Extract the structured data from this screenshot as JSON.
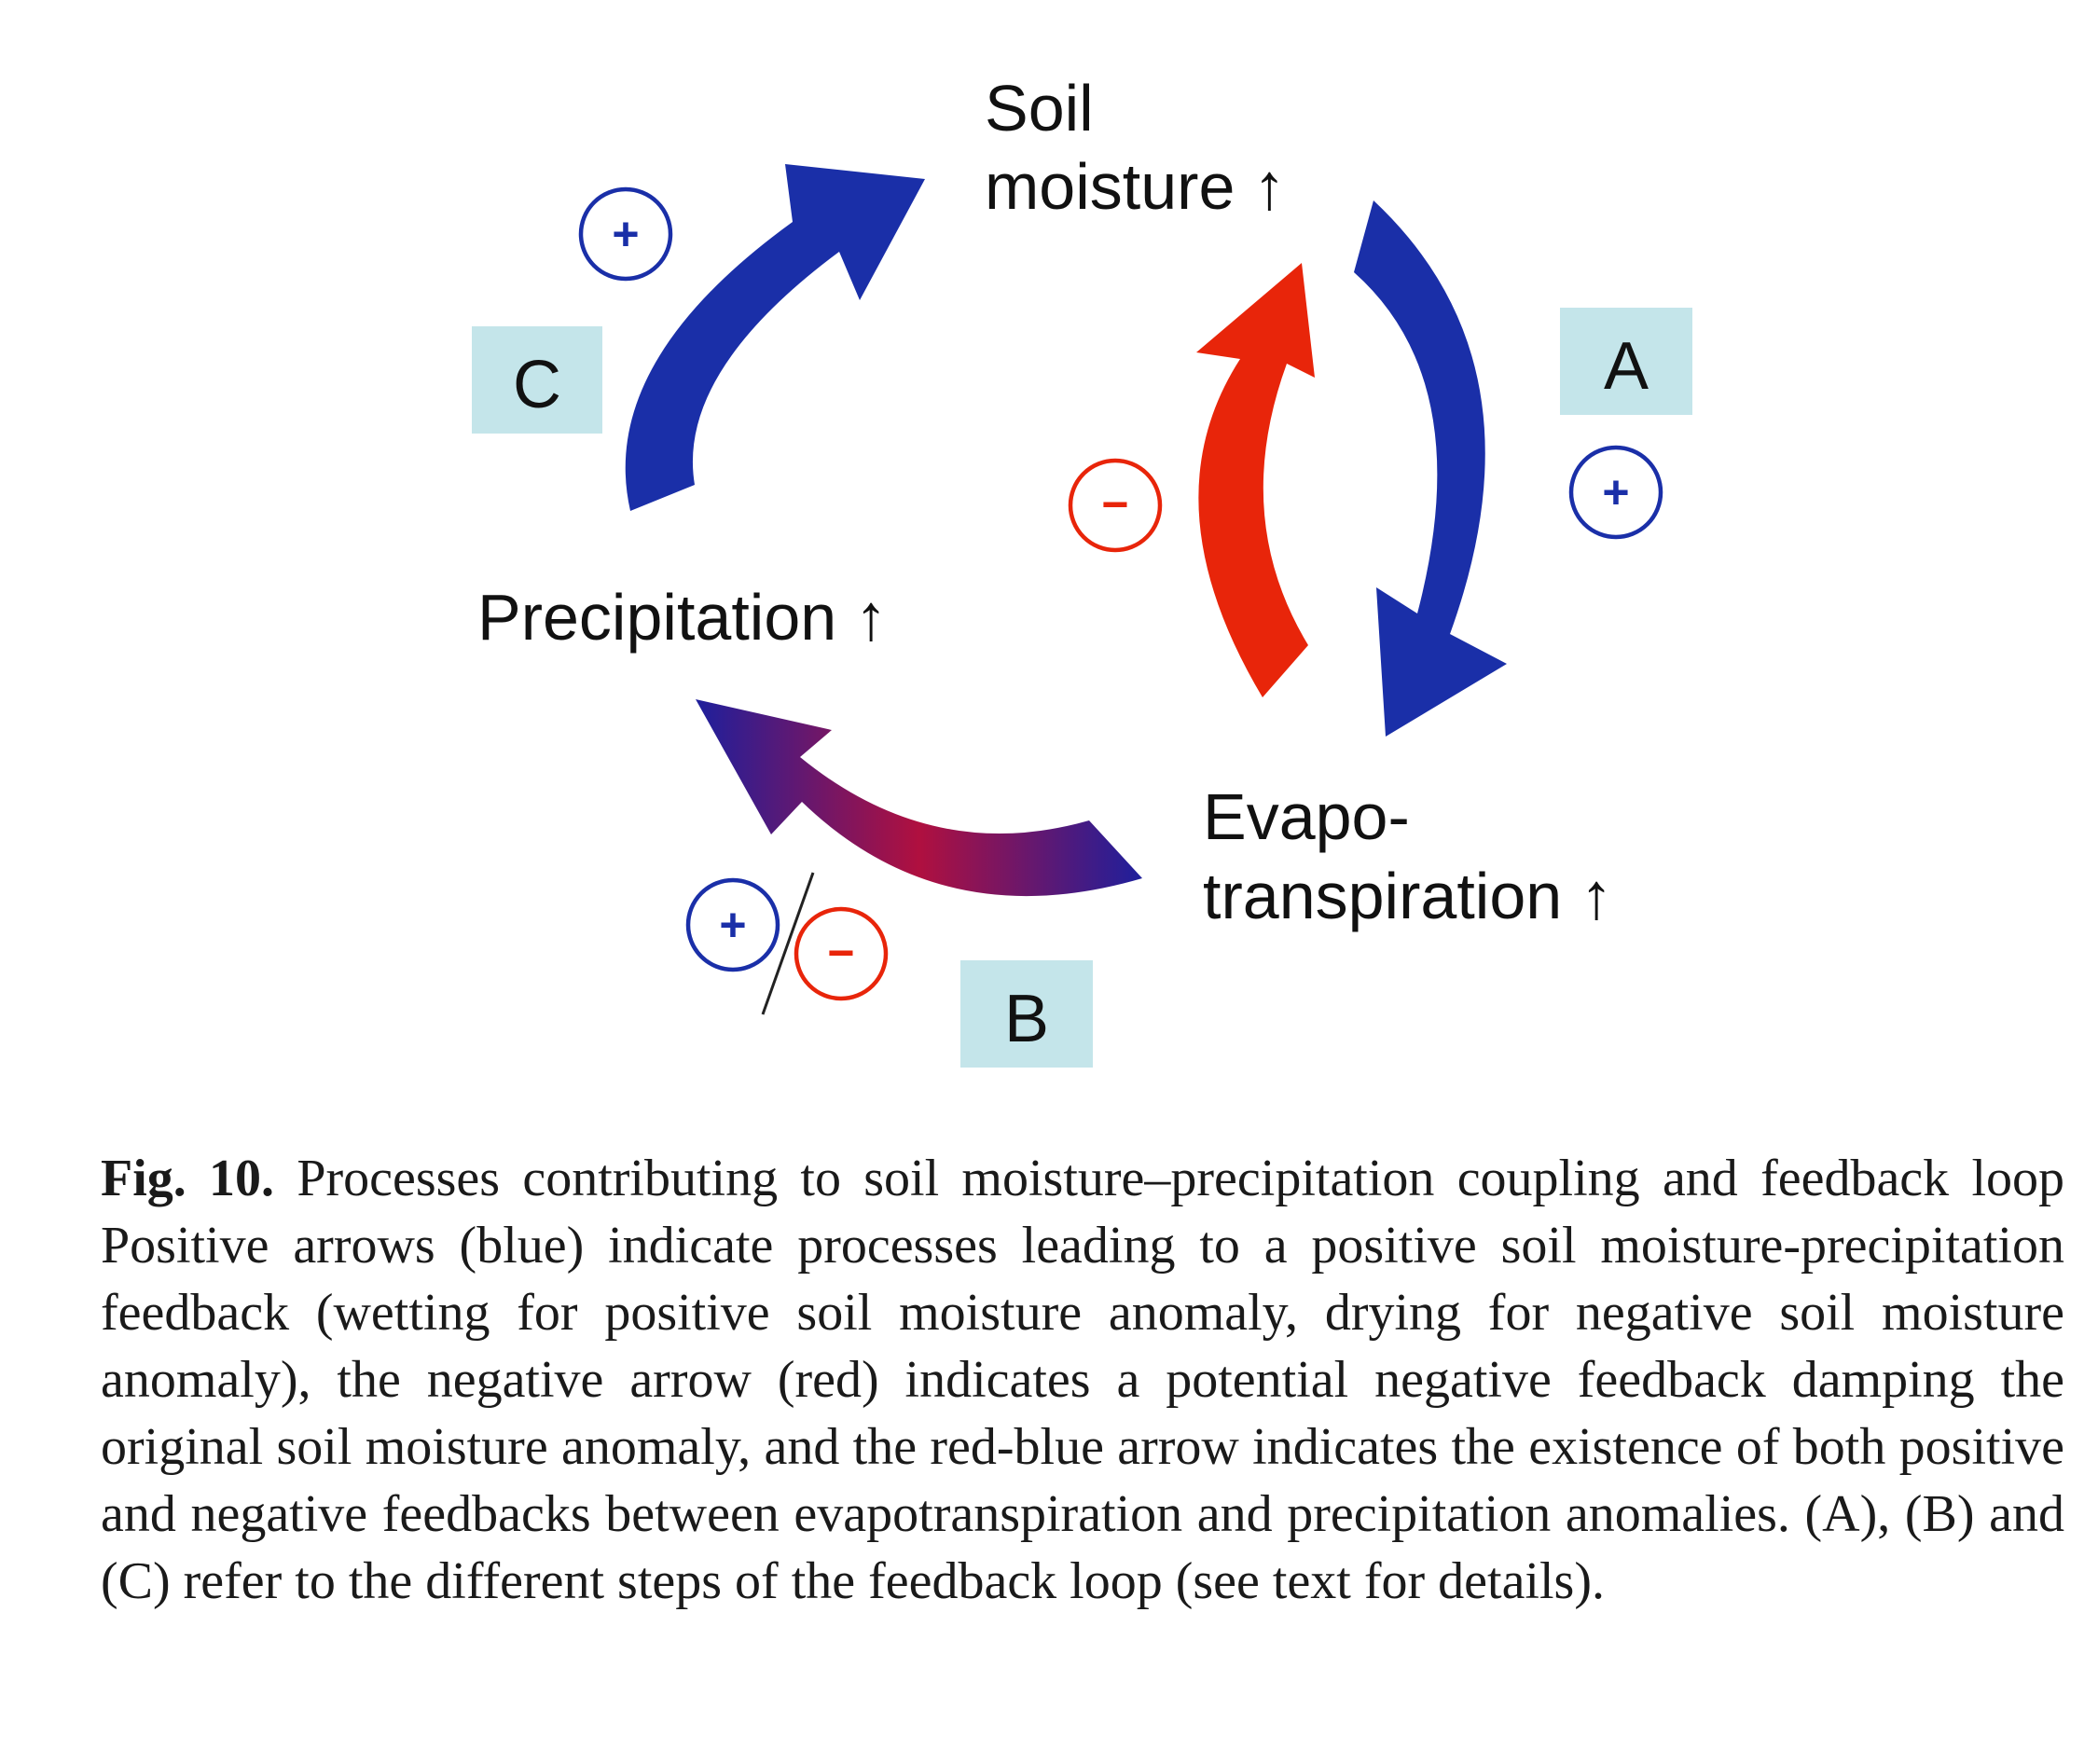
{
  "figure": {
    "nodes": {
      "soil_moisture_line1": "Soil",
      "soil_moisture_line2": "moisture ↑",
      "precipitation": "Precipitation ↑",
      "evapo_line1": "Evapo-",
      "evapo_line2": "transpiration ↑"
    },
    "steps": {
      "a": "A",
      "b": "B",
      "c": "C"
    },
    "signs": {
      "positive": "+",
      "negative": "−"
    },
    "colors": {
      "positive_arrow": "#1a2fa8",
      "negative_arrow": "#e8250a",
      "positive_sign": "#1a2fa8",
      "negative_sign": "#e8250a",
      "step_box": "#c4e5ea",
      "gradient_start": "#c0103a",
      "gradient_end": "#1e1f9c"
    }
  },
  "caption": {
    "label": "Fig. 10.",
    "text": " Processes contributing to soil moisture–precipitation coupling and feedback loop Positive arrows (blue) indicate processes leading to a positive soil moisture-precipitation feedback (wetting for positive soil moisture anomaly, drying for negative soil moisture anomaly), the negative arrow (red) indicates a potential negative feedback damping the original soil moisture anomaly, and the red-blue arrow indicates the existence of both positive and negative feedbacks between evapotranspiration and precipitation anomalies. (A), (B) and (C) refer to the different steps of the feedback loop (see text for details)."
  }
}
